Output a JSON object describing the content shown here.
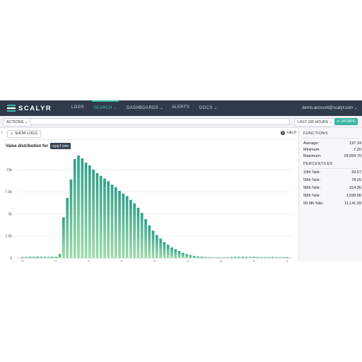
{
  "nav": {
    "logo": "SCALYR",
    "items": [
      {
        "label": "LOGS",
        "active": false
      },
      {
        "label": "SEARCH ⌄",
        "active": true
      },
      {
        "label": "DASHBOARDS ⌄",
        "active": false
      },
      {
        "label": "ALERTS",
        "active": false
      },
      {
        "label": "DOCS ⌄",
        "active": false
      }
    ],
    "account": "demo.account@scalyr.com ⌄"
  },
  "toolbar": {
    "actions_label": "ACTIONS ⌄",
    "query_value": "",
    "time_range_label": "LAST 168 HOURS ⌄",
    "update_label": "UPDATE",
    "update_icon": "refresh-icon"
  },
  "left": {
    "show_logs_label": "SHOW LOGS",
    "show_logs_icon": "arrow-icon",
    "help_label": "HELP",
    "help_icon": "question-icon",
    "chart_title": "Value distribution for",
    "field_name": "appTime"
  },
  "chart_data": {
    "type": "bar",
    "y_ticks": [
      "0",
      "2.5k",
      "5k",
      "7.5k",
      "10k"
    ],
    "ylim": [
      0,
      12000
    ],
    "x_tick_labels": [
      "5",
      "10",
      "50",
      "100",
      "500",
      "1k",
      "5k",
      "10k",
      "50k"
    ],
    "values": [
      120,
      130,
      150,
      140,
      160,
      150,
      140,
      130,
      150,
      140,
      450,
      4600,
      6800,
      8900,
      11200,
      11600,
      11300,
      10800,
      10500,
      10000,
      9600,
      9300,
      9000,
      8700,
      8300,
      8000,
      7600,
      7300,
      7000,
      6600,
      6200,
      5700,
      5100,
      4400,
      3700,
      3100,
      2600,
      2200,
      1800,
      1500,
      1200,
      1000,
      800,
      600,
      450,
      330,
      250,
      190,
      150,
      120,
      100,
      90,
      80,
      75,
      80,
      90,
      110,
      130,
      140,
      150,
      140,
      130,
      140,
      120,
      110,
      100,
      110,
      120,
      110,
      100,
      90,
      100
    ],
    "colors": {
      "top": "#2f9f8a",
      "bottom": "#9fdcaa"
    }
  },
  "right": {
    "functions_title": "FUNCTIONS",
    "functions": [
      {
        "label": "Average:",
        "value": "197.24"
      },
      {
        "label": "Minimum:",
        "value": "7.20"
      },
      {
        "label": "Maximum:",
        "value": "29,559.70"
      }
    ],
    "percentiles_title": "PERCENTILES",
    "percentiles": [
      {
        "label": "10th %ile:",
        "value": "29.67"
      },
      {
        "label": "50th %ile:",
        "value": "78.25"
      },
      {
        "label": "90th %ile:",
        "value": "314.35"
      },
      {
        "label": "99th %ile:",
        "value": "1,599.08"
      },
      {
        "label": "99.9th %ile:",
        "value": "11,141.99"
      }
    ]
  },
  "colors": {
    "nav_bg": "#2f3a4b",
    "accent": "#3ab5a5"
  }
}
